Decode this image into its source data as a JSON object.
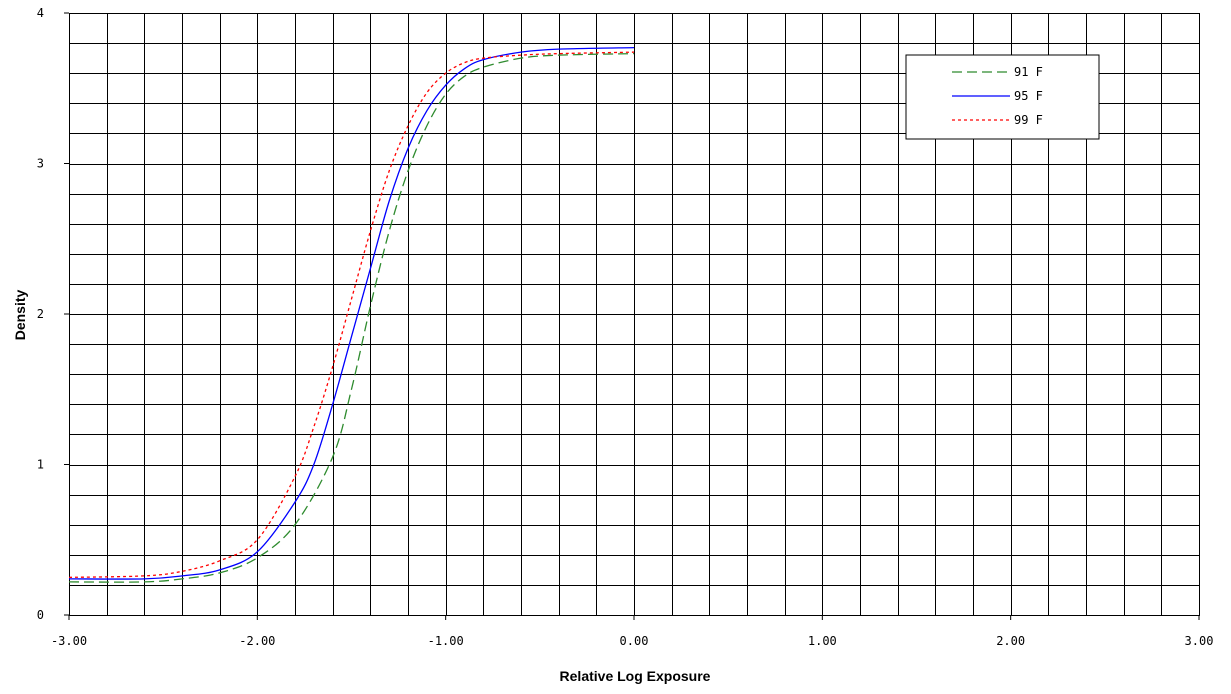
{
  "chart_data": {
    "type": "line",
    "title": "",
    "xlabel": "Relative Log Exposure",
    "ylabel": "Density",
    "xlim": [
      -3.0,
      3.0
    ],
    "ylim": [
      0,
      4
    ],
    "x_ticks": [
      {
        "value": -3,
        "label": "-3.00"
      },
      {
        "value": -2,
        "label": "-2.00"
      },
      {
        "value": -1,
        "label": "-1.00"
      },
      {
        "value": 0,
        "label": "0.00"
      },
      {
        "value": 1,
        "label": "1.00"
      },
      {
        "value": 2,
        "label": "2.00"
      },
      {
        "value": 3,
        "label": "3.00"
      }
    ],
    "y_ticks": [
      {
        "value": 0,
        "label": "0"
      },
      {
        "value": 1,
        "label": "1"
      },
      {
        "value": 2,
        "label": "2"
      },
      {
        "value": 3,
        "label": "3"
      },
      {
        "value": 4,
        "label": "4"
      }
    ],
    "grid": true,
    "x_minor_step": 0.2,
    "y_minor_step": 0.2,
    "legend_position": "top-right",
    "series": [
      {
        "name": "91 F",
        "color": "#2e8b2e",
        "dash": "dashed",
        "points": [
          [
            -3.0,
            0.22
          ],
          [
            -2.6,
            0.22
          ],
          [
            -2.4,
            0.24
          ],
          [
            -2.2,
            0.28
          ],
          [
            -2.0,
            0.38
          ],
          [
            -1.8,
            0.6
          ],
          [
            -1.6,
            1.05
          ],
          [
            -1.5,
            1.5
          ],
          [
            -1.4,
            2.05
          ],
          [
            -1.3,
            2.55
          ],
          [
            -1.2,
            2.95
          ],
          [
            -1.1,
            3.25
          ],
          [
            -1.0,
            3.46
          ],
          [
            -0.9,
            3.58
          ],
          [
            -0.8,
            3.64
          ],
          [
            -0.6,
            3.7
          ],
          [
            -0.4,
            3.72
          ],
          [
            0.0,
            3.73
          ]
        ]
      },
      {
        "name": "95 F",
        "color": "#0000ff",
        "dash": "solid",
        "points": [
          [
            -3.0,
            0.24
          ],
          [
            -2.6,
            0.24
          ],
          [
            -2.4,
            0.26
          ],
          [
            -2.2,
            0.3
          ],
          [
            -2.0,
            0.42
          ],
          [
            -1.8,
            0.75
          ],
          [
            -1.7,
            1.0
          ],
          [
            -1.6,
            1.4
          ],
          [
            -1.5,
            1.85
          ],
          [
            -1.4,
            2.3
          ],
          [
            -1.3,
            2.75
          ],
          [
            -1.2,
            3.1
          ],
          [
            -1.1,
            3.35
          ],
          [
            -1.0,
            3.52
          ],
          [
            -0.9,
            3.63
          ],
          [
            -0.8,
            3.69
          ],
          [
            -0.6,
            3.74
          ],
          [
            -0.4,
            3.76
          ],
          [
            0.0,
            3.77
          ]
        ]
      },
      {
        "name": "99 F",
        "color": "#ff0000",
        "dash": "dotted",
        "points": [
          [
            -3.0,
            0.25
          ],
          [
            -2.6,
            0.26
          ],
          [
            -2.4,
            0.29
          ],
          [
            -2.2,
            0.36
          ],
          [
            -2.0,
            0.5
          ],
          [
            -1.8,
            0.92
          ],
          [
            -1.7,
            1.25
          ],
          [
            -1.6,
            1.65
          ],
          [
            -1.5,
            2.1
          ],
          [
            -1.4,
            2.55
          ],
          [
            -1.3,
            2.95
          ],
          [
            -1.2,
            3.25
          ],
          [
            -1.1,
            3.47
          ],
          [
            -1.0,
            3.6
          ],
          [
            -0.9,
            3.67
          ],
          [
            -0.8,
            3.7
          ],
          [
            -0.6,
            3.72
          ],
          [
            -0.4,
            3.73
          ],
          [
            0.0,
            3.74
          ]
        ]
      }
    ]
  }
}
